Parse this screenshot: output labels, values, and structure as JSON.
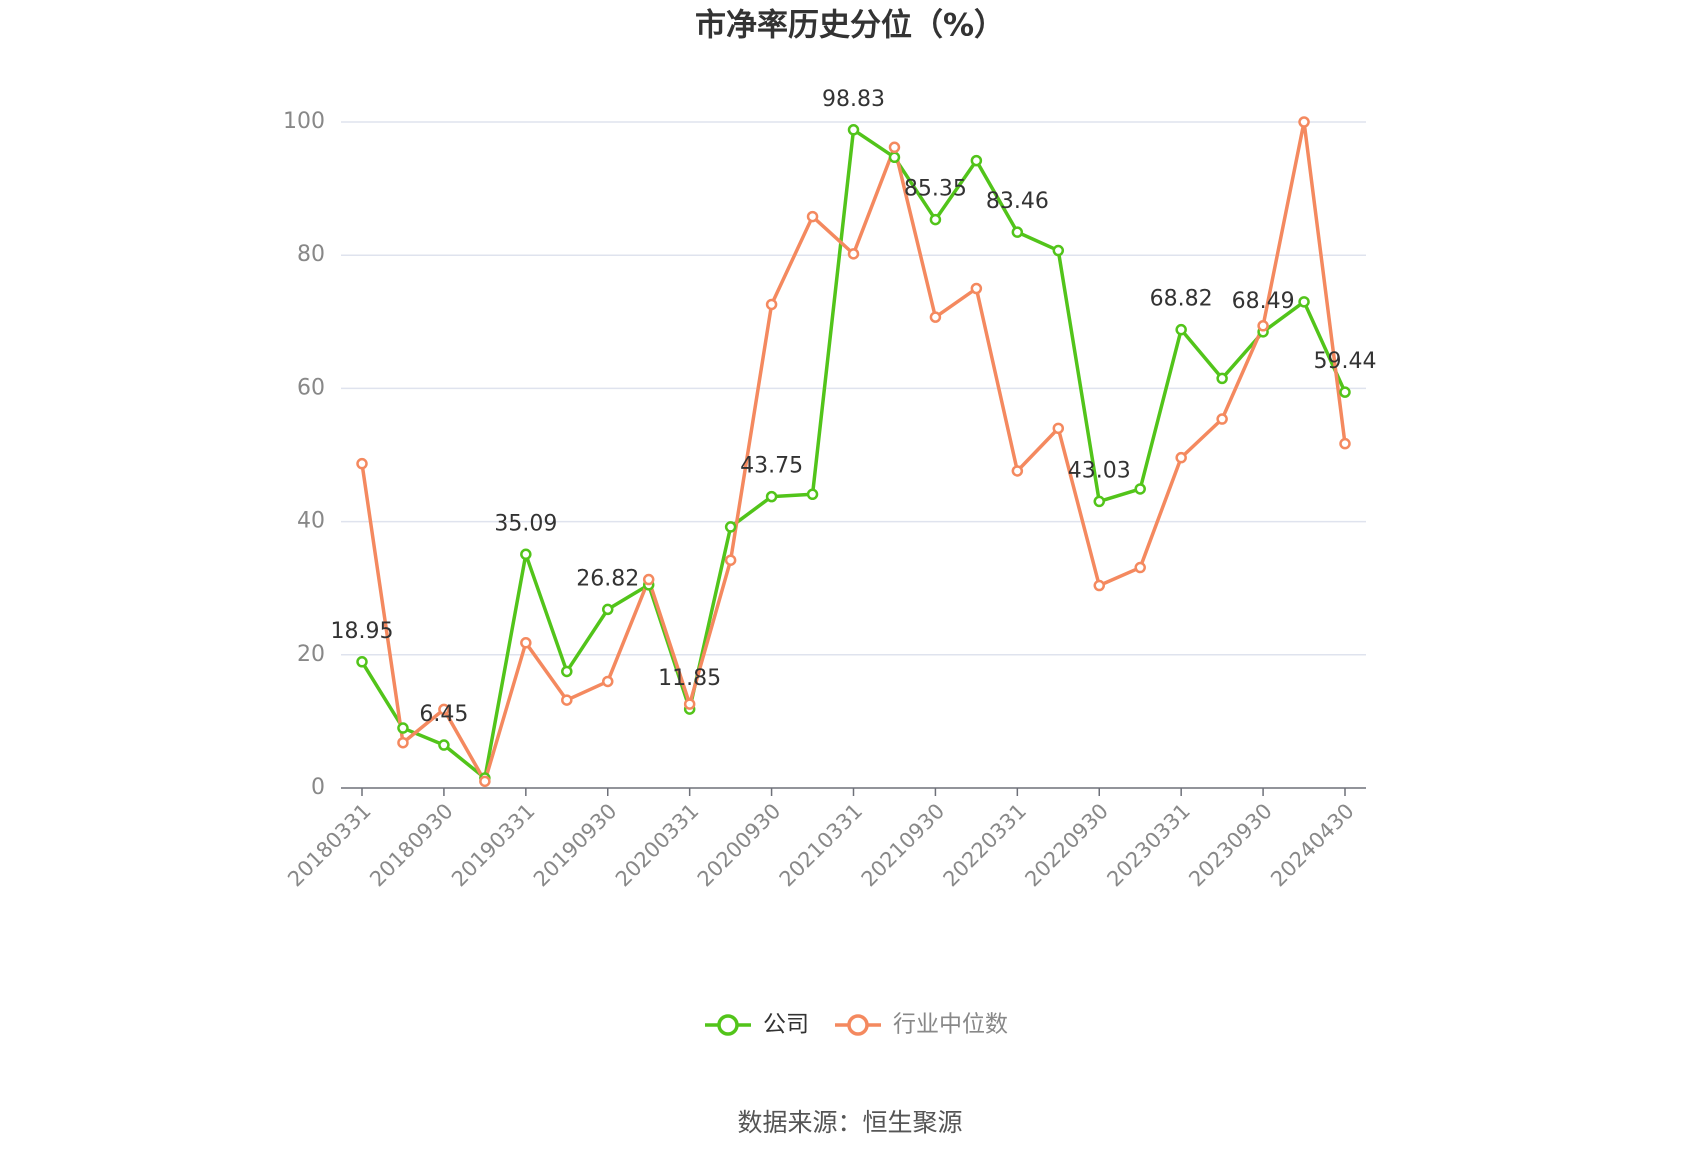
{
  "chart_data": {
    "type": "line",
    "title": "市净率历史分位（%）",
    "categories": [
      "20180331",
      null,
      "20180930",
      null,
      "20190331",
      null,
      "20190930",
      null,
      "20200331",
      null,
      "20200930",
      null,
      "20210331",
      null,
      "20210930",
      null,
      "20220331",
      null,
      "20220930",
      null,
      "20230331",
      null,
      "20230930",
      null,
      "20240430"
    ],
    "series": [
      {
        "name": "公司",
        "color": "#52c41a",
        "values": [
          18.95,
          9,
          6.45,
          1.5,
          35.09,
          17.5,
          26.82,
          30.5,
          11.85,
          39.2,
          43.75,
          44.1,
          98.83,
          94.7,
          85.35,
          94.2,
          83.46,
          80.7,
          43.03,
          44.9,
          68.82,
          61.5,
          68.49,
          73,
          59.44
        ]
      },
      {
        "name": "行业中位数",
        "color": "#f4895f",
        "values": [
          48.7,
          6.8,
          11.8,
          1.0,
          21.8,
          13.2,
          16.0,
          31.3,
          12.6,
          34.2,
          72.6,
          85.8,
          80.2,
          96.2,
          70.7,
          75.0,
          47.6,
          54.0,
          30.4,
          33.1,
          49.6,
          55.4,
          69.4,
          100,
          51.7
        ]
      }
    ],
    "ylim": [
      0,
      100
    ],
    "yticks": [
      0,
      20,
      40,
      60,
      80,
      100
    ],
    "grid": true,
    "source": "数据来源：恒生聚源"
  }
}
